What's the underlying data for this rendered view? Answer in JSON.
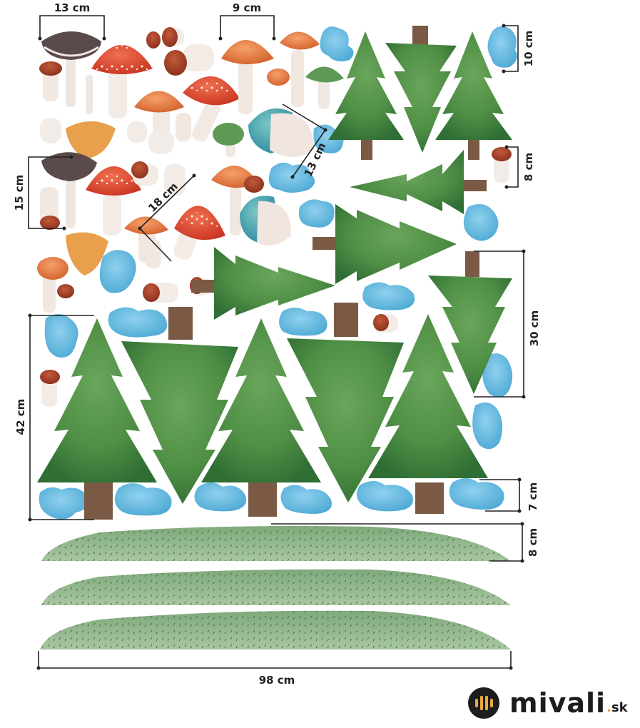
{
  "measurements": {
    "mushroom_width": "13 cm",
    "mushroom_small_width": "9 cm",
    "mushroom_tall_height": "15 cm",
    "mushroom_diag_1": "18 cm",
    "mushroom_diag_2": "13 cm",
    "cloud_height_top": "10 cm",
    "small_mushroom_height": "8 cm",
    "tree_small_height": "30 cm",
    "tree_large_height": "42 cm",
    "cloud_height_bottom": "7 cm",
    "grass_height": "8 cm",
    "grass_width": "98 cm"
  },
  "brand": {
    "name": "mivali",
    "dot": ".",
    "tld": "sk"
  },
  "colors": {
    "tree_green": "#4f8e45",
    "tree_dark": "#2f6e34",
    "trunk": "#7a5a45",
    "cloud_blue": "#5ab5dc",
    "grass_green": "#8fb48a",
    "mushroom_red": "#d8432b",
    "mushroom_orange": "#e07a3c",
    "logo_accent": "#e9a93a"
  }
}
